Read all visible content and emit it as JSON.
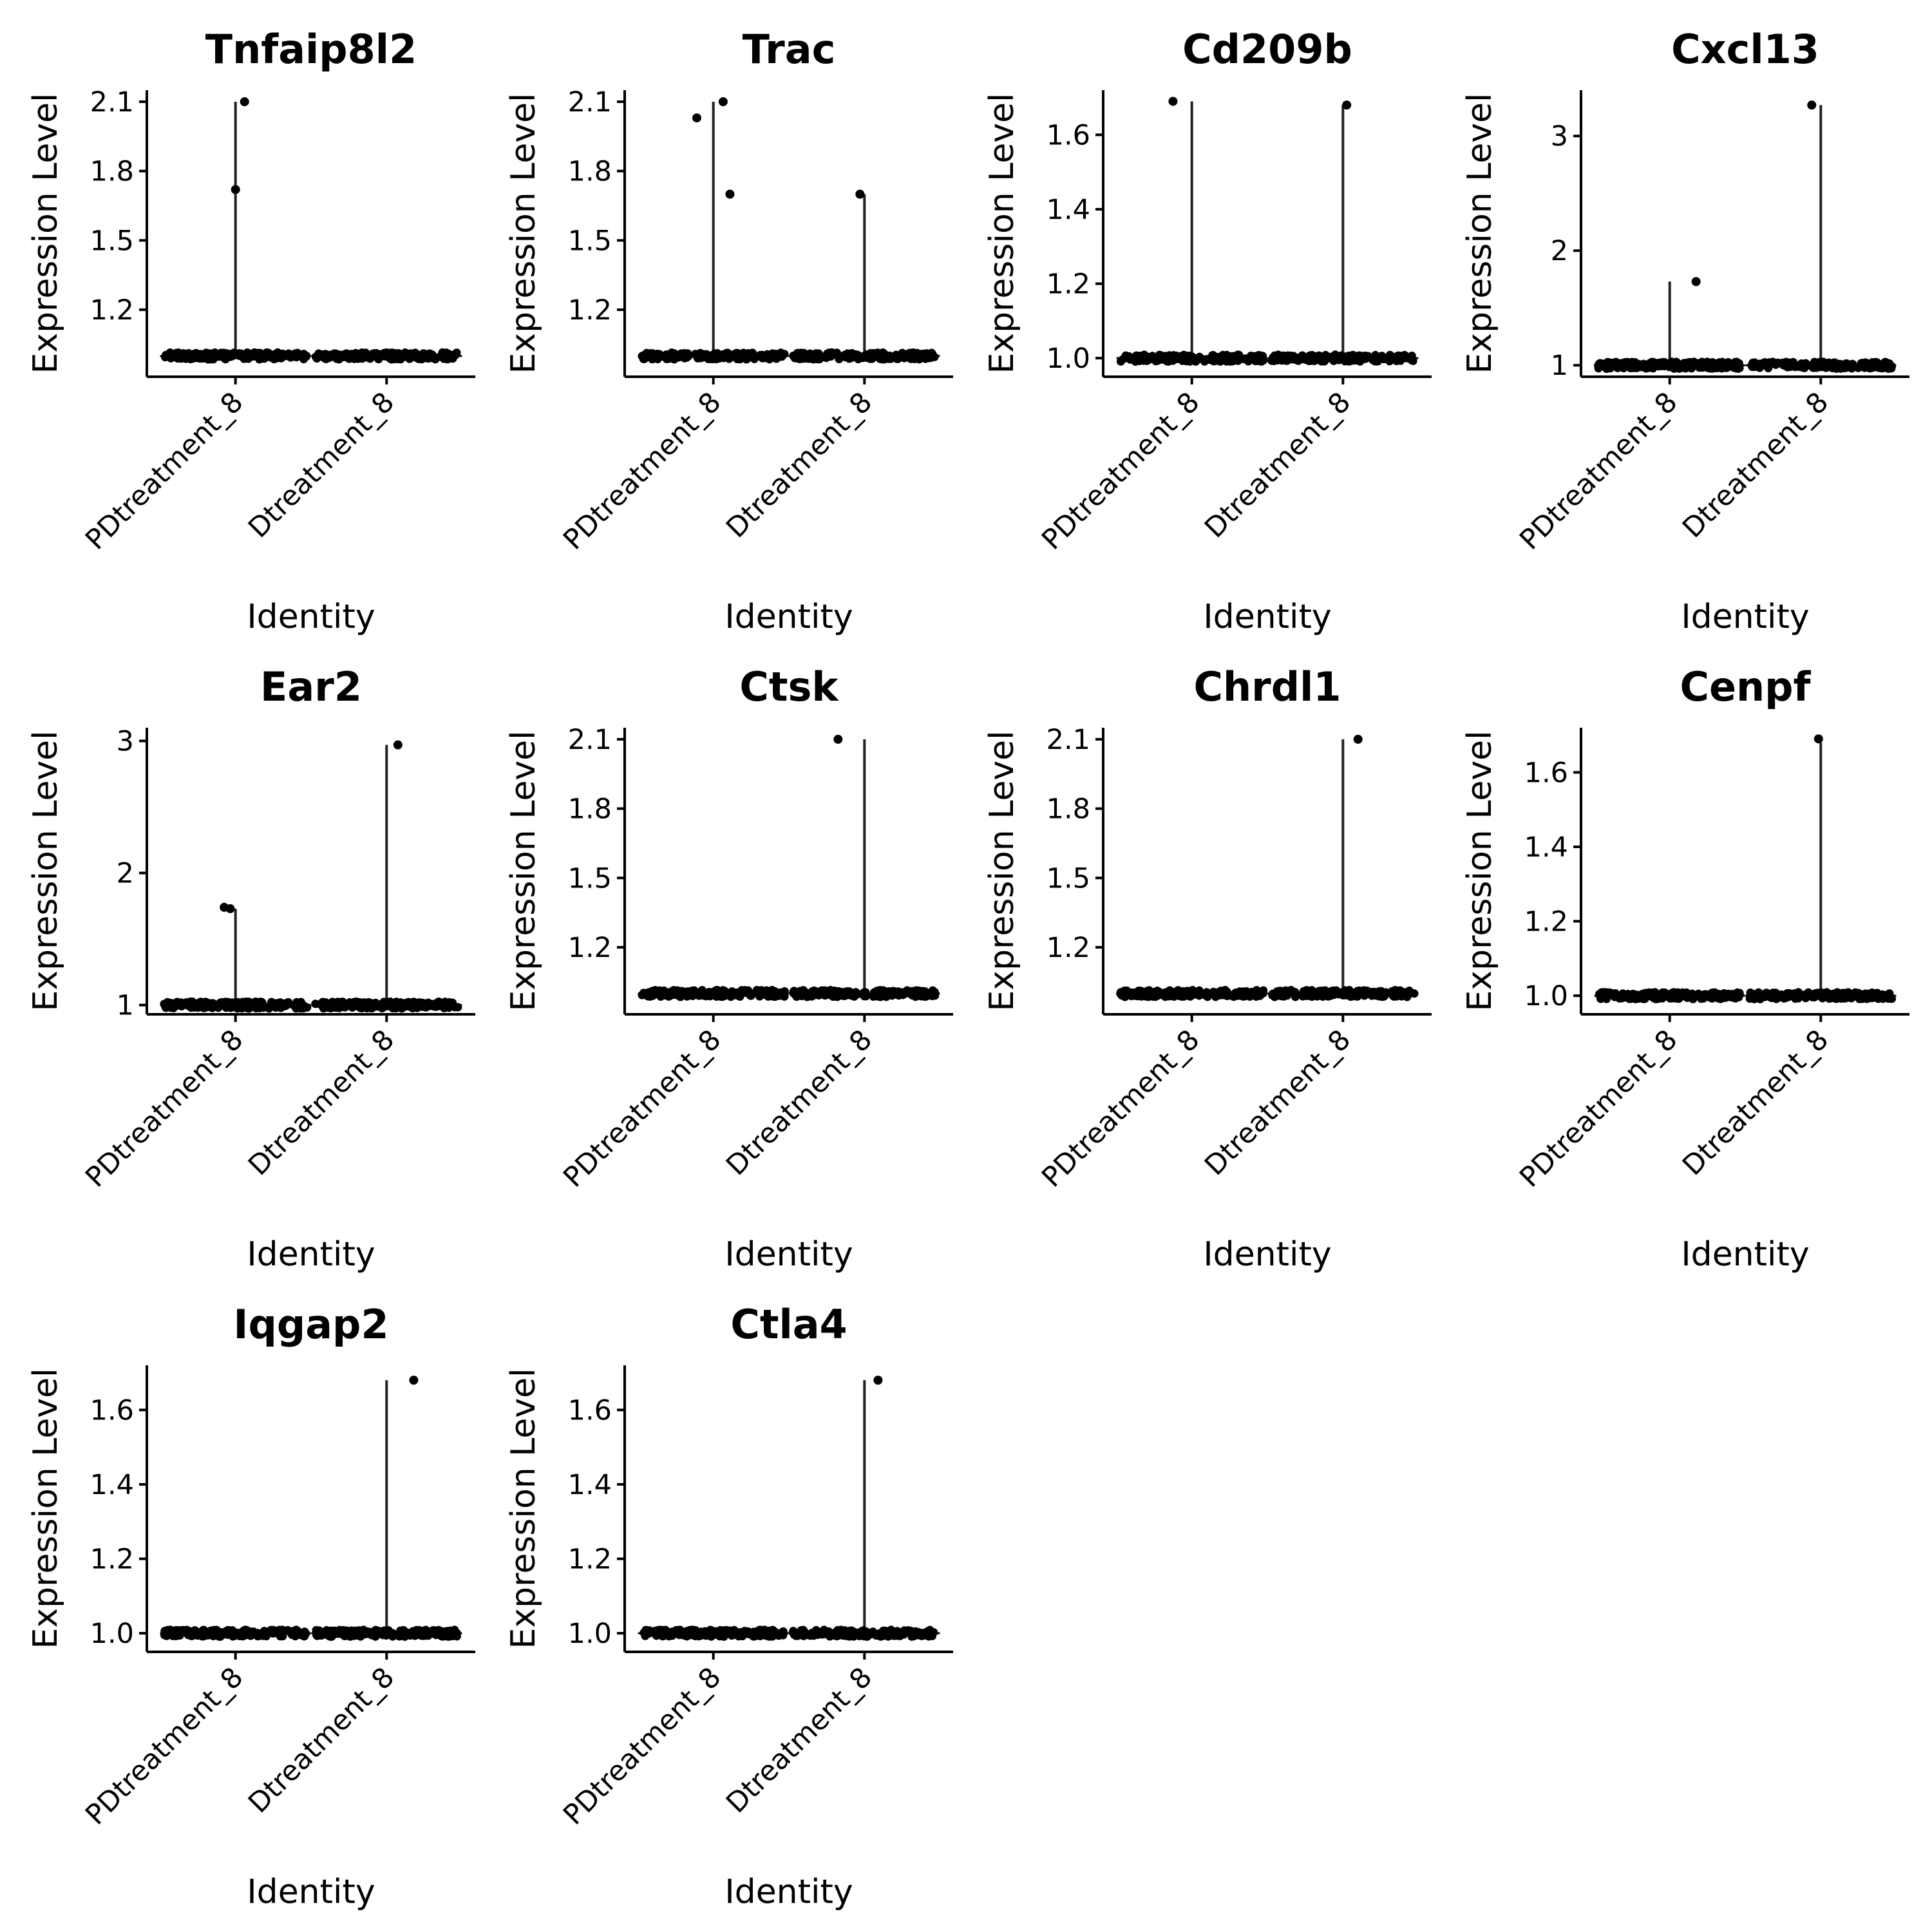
{
  "figure": {
    "xlabel": "Identity",
    "ylabel": "Expression Level",
    "categories": [
      "PDtreatment_8",
      "Dtreatment_8"
    ]
  },
  "chart_data": [
    {
      "type": "violin",
      "title": "Tnfaip8l2",
      "ylim": [
        0.91,
        2.15
      ],
      "yticks": [
        1.2,
        1.5,
        1.8,
        2.1
      ],
      "ytick_labels": [
        "1.2",
        "1.5",
        "1.8",
        "2.1"
      ],
      "series": [
        {
          "category": "PDtreatment_8",
          "max": 2.1,
          "outliers": [
            [
              0.0,
              1.72
            ],
            [
              0.12,
              2.1
            ]
          ]
        },
        {
          "category": "Dtreatment_8",
          "max": 1.0,
          "outliers": []
        }
      ]
    },
    {
      "type": "violin",
      "title": "Trac",
      "ylim": [
        0.91,
        2.15
      ],
      "yticks": [
        1.2,
        1.5,
        1.8,
        2.1
      ],
      "ytick_labels": [
        "1.2",
        "1.5",
        "1.8",
        "2.1"
      ],
      "series": [
        {
          "category": "PDtreatment_8",
          "max": 2.1,
          "outliers": [
            [
              -0.22,
              2.03
            ],
            [
              0.13,
              2.1
            ],
            [
              0.22,
              1.7
            ]
          ]
        },
        {
          "category": "Dtreatment_8",
          "max": 1.7,
          "outliers": [
            [
              -0.06,
              1.7
            ]
          ]
        }
      ]
    },
    {
      "type": "violin",
      "title": "Cd209b",
      "ylim": [
        0.95,
        1.72
      ],
      "yticks": [
        1.0,
        1.2,
        1.4,
        1.6
      ],
      "ytick_labels": [
        "1.0",
        "1.2",
        "1.4",
        "1.6"
      ],
      "series": [
        {
          "category": "PDtreatment_8",
          "max": 1.69,
          "outliers": [
            [
              -0.25,
              1.69
            ]
          ]
        },
        {
          "category": "Dtreatment_8",
          "max": 1.68,
          "outliers": [
            [
              0.05,
              1.68
            ]
          ]
        }
      ]
    },
    {
      "type": "violin",
      "title": "Cxcl13",
      "ylim": [
        0.9,
        3.4
      ],
      "yticks": [
        1,
        2,
        3
      ],
      "ytick_labels": [
        "1",
        "2",
        "3"
      ],
      "series": [
        {
          "category": "PDtreatment_8",
          "max": 1.73,
          "outliers": [
            [
              0.35,
              1.73
            ]
          ]
        },
        {
          "category": "Dtreatment_8",
          "max": 3.27,
          "outliers": [
            [
              -0.12,
              3.27
            ]
          ]
        }
      ]
    },
    {
      "type": "violin",
      "title": "Ear2",
      "ylim": [
        0.93,
        3.1
      ],
      "yticks": [
        1,
        2,
        3
      ],
      "ytick_labels": [
        "1",
        "2",
        "3"
      ],
      "series": [
        {
          "category": "PDtreatment_8",
          "max": 1.73,
          "outliers": [
            [
              -0.15,
              1.74
            ],
            [
              -0.07,
              1.73
            ]
          ]
        },
        {
          "category": "Dtreatment_8",
          "max": 2.97,
          "outliers": [
            [
              0.15,
              2.97
            ]
          ]
        }
      ]
    },
    {
      "type": "violin",
      "title": "Ctsk",
      "ylim": [
        0.91,
        2.15
      ],
      "yticks": [
        1.2,
        1.5,
        1.8,
        2.1
      ],
      "ytick_labels": [
        "1.2",
        "1.5",
        "1.8",
        "2.1"
      ],
      "series": [
        {
          "category": "PDtreatment_8",
          "max": 1.02,
          "outliers": []
        },
        {
          "category": "Dtreatment_8",
          "max": 2.1,
          "outliers": [
            [
              -0.35,
              2.1
            ]
          ]
        }
      ]
    },
    {
      "type": "violin",
      "title": "Chrdl1",
      "ylim": [
        0.91,
        2.15
      ],
      "yticks": [
        1.2,
        1.5,
        1.8,
        2.1
      ],
      "ytick_labels": [
        "1.2",
        "1.5",
        "1.8",
        "2.1"
      ],
      "series": [
        {
          "category": "PDtreatment_8",
          "max": 1.02,
          "outliers": []
        },
        {
          "category": "Dtreatment_8",
          "max": 2.1,
          "outliers": [
            [
              0.2,
              2.1
            ]
          ]
        }
      ]
    },
    {
      "type": "violin",
      "title": "Cenpf",
      "ylim": [
        0.95,
        1.72
      ],
      "yticks": [
        1.0,
        1.2,
        1.4,
        1.6
      ],
      "ytick_labels": [
        "1.0",
        "1.2",
        "1.4",
        "1.6"
      ],
      "series": [
        {
          "category": "PDtreatment_8",
          "max": 1.03,
          "outliers": []
        },
        {
          "category": "Dtreatment_8",
          "max": 1.68,
          "outliers": [
            [
              -0.03,
              1.69
            ]
          ]
        }
      ]
    },
    {
      "type": "violin",
      "title": "Iqgap2",
      "ylim": [
        0.95,
        1.72
      ],
      "yticks": [
        1.0,
        1.2,
        1.4,
        1.6
      ],
      "ytick_labels": [
        "1.0",
        "1.2",
        "1.4",
        "1.6"
      ],
      "series": [
        {
          "category": "PDtreatment_8",
          "max": 1.02,
          "outliers": []
        },
        {
          "category": "Dtreatment_8",
          "max": 1.68,
          "outliers": [
            [
              0.36,
              1.68
            ]
          ]
        }
      ]
    },
    {
      "type": "violin",
      "title": "Ctla4",
      "ylim": [
        0.95,
        1.72
      ],
      "yticks": [
        1.0,
        1.2,
        1.4,
        1.6
      ],
      "ytick_labels": [
        "1.0",
        "1.2",
        "1.4",
        "1.6"
      ],
      "series": [
        {
          "category": "PDtreatment_8",
          "max": 1.02,
          "outliers": []
        },
        {
          "category": "Dtreatment_8",
          "max": 1.68,
          "outliers": [
            [
              0.18,
              1.68
            ]
          ]
        }
      ]
    }
  ]
}
